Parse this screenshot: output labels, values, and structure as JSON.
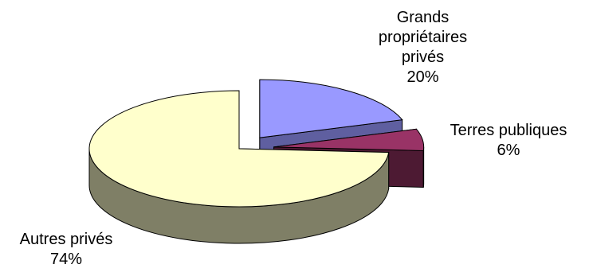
{
  "chart_data": {
    "type": "pie",
    "style": "3d-exploded",
    "slices": [
      {
        "label_lines": [
          "Grands",
          "propriétaires",
          "privés"
        ],
        "percent_label": "20%",
        "value": 20,
        "top_color": "#9999ff",
        "side_color": "#5f5fa0"
      },
      {
        "label_lines": [
          "Terres publiques"
        ],
        "percent_label": "6%",
        "value": 6,
        "top_color": "#993366",
        "side_color": "#4d1a33"
      },
      {
        "label_lines": [
          "Autres privés"
        ],
        "percent_label": "74%",
        "value": 74,
        "top_color": "#ffffcc",
        "side_color": "#7f7f66"
      }
    ]
  }
}
